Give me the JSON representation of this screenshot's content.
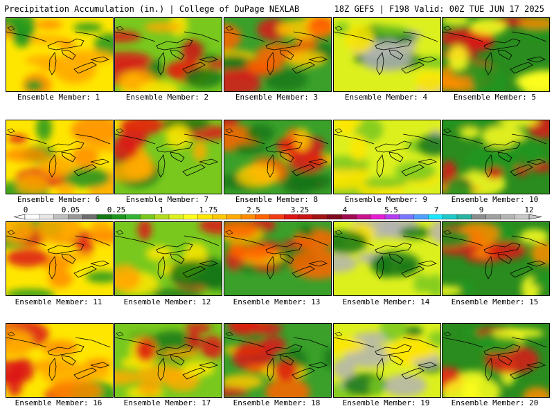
{
  "header": {
    "left": "Precipitation Accumulation (in.) | College of DuPage NEXLAB",
    "right": "18Z GEFS | F198 Valid: 00Z TUE JUN 17 2025"
  },
  "panels": [
    {
      "label": "Ensemble Member: 1"
    },
    {
      "label": "Ensemble Member: 2"
    },
    {
      "label": "Ensemble Member: 3"
    },
    {
      "label": "Ensemble Member: 4"
    },
    {
      "label": "Ensemble Member: 5"
    },
    {
      "label": "Ensemble Member: 6"
    },
    {
      "label": "Ensemble Member: 7"
    },
    {
      "label": "Ensemble Member: 8"
    },
    {
      "label": "Ensemble Member: 9"
    },
    {
      "label": "Ensemble Member: 10"
    },
    {
      "label": "Ensemble Member: 11"
    },
    {
      "label": "Ensemble Member: 12"
    },
    {
      "label": "Ensemble Member: 13"
    },
    {
      "label": "Ensemble Member: 14"
    },
    {
      "label": "Ensemble Member: 15"
    },
    {
      "label": "Ensemble Member: 16"
    },
    {
      "label": "Ensemble Member: 17"
    },
    {
      "label": "Ensemble Member: 18"
    },
    {
      "label": "Ensemble Member: 19"
    },
    {
      "label": "Ensemble Member: 20"
    }
  ],
  "colorbar": {
    "ticks": [
      "0",
      "0.05",
      "0.25",
      "1",
      "1.75",
      "2.5",
      "3.25",
      "4",
      "5.5",
      "7",
      "9",
      "12"
    ],
    "colors": [
      "#ffffff",
      "#e6e6e6",
      "#bfbfbf",
      "#999999",
      "#6e6e6e",
      "#147814",
      "#1e961e",
      "#32b432",
      "#78c81e",
      "#b4dc1e",
      "#dcf01e",
      "#ffff1e",
      "#ffe600",
      "#ffc800",
      "#ffaa00",
      "#ff8c00",
      "#ff6400",
      "#f03c14",
      "#dc1414",
      "#c81414",
      "#a01414",
      "#7d0a1e",
      "#a00a50",
      "#c8148c",
      "#e61ed2",
      "#b43cf0",
      "#7878ff",
      "#50a0ff",
      "#1ee6ff",
      "#1ec8c8",
      "#28b4a0",
      "#8c8c8c",
      "#a0a0a0",
      "#b4b4b4",
      "#c8c8c8"
    ]
  }
}
